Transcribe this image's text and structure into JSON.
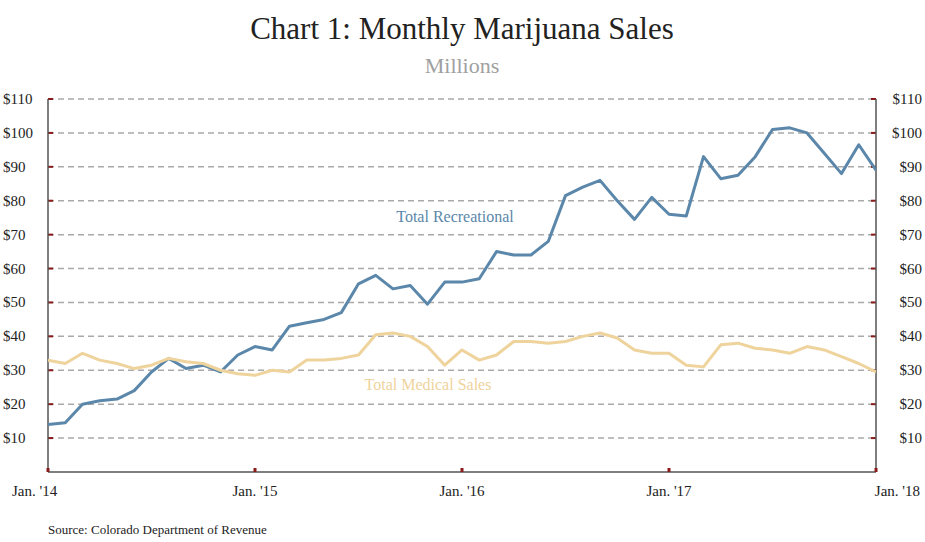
{
  "chart_data": {
    "type": "line",
    "title": "Chart 1: Monthly Marijuana Sales",
    "subtitle": "Millions",
    "source": "Source: Colorado Department of Revenue",
    "categories": [
      "Jan. '14",
      null,
      null,
      null,
      null,
      null,
      null,
      null,
      null,
      null,
      null,
      null,
      "Jan. '15",
      null,
      null,
      null,
      null,
      null,
      null,
      null,
      null,
      null,
      null,
      null,
      "Jan. '16",
      null,
      null,
      null,
      null,
      null,
      null,
      null,
      null,
      null,
      null,
      null,
      "Jan. '17",
      null,
      null,
      null,
      null,
      null,
      null,
      null,
      null,
      null,
      null,
      null,
      "Jan. '18"
    ],
    "series": [
      {
        "name": "Total Recreational",
        "color": "#5b87aa",
        "values": [
          14,
          14.5,
          20,
          21,
          21.5,
          24,
          29.5,
          33.5,
          30.5,
          31.5,
          29.5,
          34.5,
          37,
          36,
          43,
          44,
          45,
          47,
          55.5,
          58,
          54,
          55,
          49.5,
          56,
          56,
          57,
          65,
          64,
          64,
          68,
          81.5,
          84,
          86,
          80,
          74.5,
          81,
          76,
          75.5,
          93,
          86.5,
          87.5,
          93,
          101,
          101.5,
          100,
          94,
          88,
          96.5,
          89
        ]
      },
      {
        "name": "Total Medical Sales",
        "color": "#efd39c",
        "values": [
          33,
          32,
          35,
          33,
          32,
          30.5,
          31.5,
          33.5,
          32.5,
          32,
          30,
          29,
          28.5,
          30,
          29.5,
          33,
          33,
          33.5,
          34.5,
          40.5,
          41,
          40,
          37,
          31.5,
          36,
          33,
          34.5,
          38.5,
          38.5,
          38,
          38.5,
          40,
          41,
          39.5,
          36,
          35,
          35,
          31.5,
          31,
          37.5,
          38,
          36.5,
          36,
          35,
          37,
          36,
          34,
          32,
          29.5
        ]
      }
    ],
    "ylim": [
      0,
      110
    ],
    "yticks": [
      {
        "value": 10,
        "label": "$10"
      },
      {
        "value": 20,
        "label": "$20"
      },
      {
        "value": 30,
        "label": "$30"
      },
      {
        "value": 40,
        "label": "$40"
      },
      {
        "value": 50,
        "label": "$50"
      },
      {
        "value": 60,
        "label": "$60"
      },
      {
        "value": 70,
        "label": "$70"
      },
      {
        "value": 80,
        "label": "$80"
      },
      {
        "value": 90,
        "label": "$90"
      },
      {
        "value": 100,
        "label": "$100"
      },
      {
        "value": 110,
        "label": "$110"
      }
    ],
    "grid": true
  }
}
